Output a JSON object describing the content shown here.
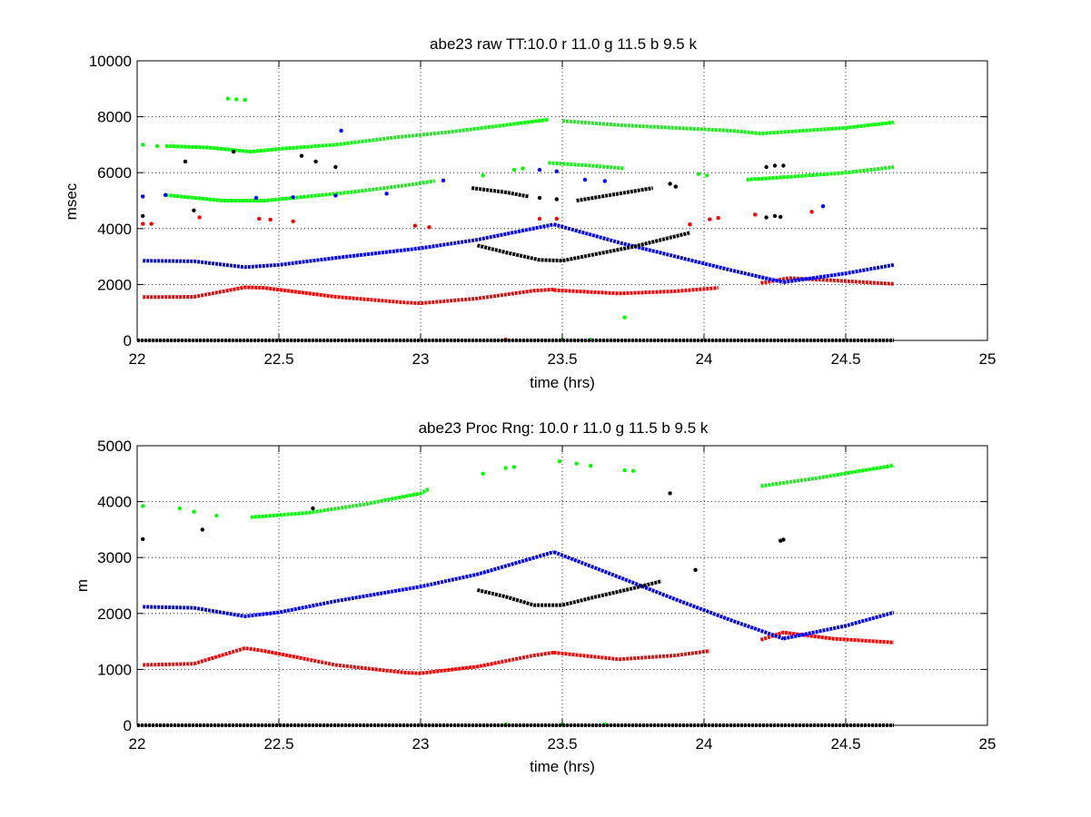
{
  "chart_data": [
    {
      "type": "scatter",
      "title": "abe23 raw TT:10.0 r  11.0 g  11.5 b  9.5 k",
      "xlabel": "time (hrs)",
      "ylabel": "msec",
      "xlim": [
        22,
        25
      ],
      "ylim": [
        0,
        10000
      ],
      "xticks": [
        22,
        22.5,
        23,
        23.5,
        24,
        24.5,
        25
      ],
      "xtick_labels": [
        "22",
        "22.5",
        "23",
        "23.5",
        "24",
        "24.5",
        "25"
      ],
      "yticks": [
        0,
        2000,
        4000,
        6000,
        8000,
        10000
      ],
      "ytick_labels": [
        "0",
        "2000",
        "4000",
        "6000",
        "8000",
        "10000"
      ],
      "grid": true,
      "series": [
        {
          "color": "#ff0000",
          "segments": [
            {
              "x": [
                22.02,
                22.2,
                22.38,
                22.45,
                22.7,
                22.95,
                23.0,
                23.2,
                23.4,
                23.47
              ],
              "y": [
                1550,
                1560,
                1900,
                1880,
                1560,
                1350,
                1330,
                1500,
                1780,
                1820
              ]
            },
            {
              "x": [
                23.47,
                23.7,
                23.9,
                24.05
              ],
              "y": [
                1800,
                1680,
                1760,
                1880
              ]
            },
            {
              "x": [
                24.2,
                24.3,
                24.45,
                24.67
              ],
              "y": [
                2050,
                2230,
                2150,
                2020
              ]
            }
          ],
          "scatter": [
            {
              "x": 22.02,
              "y": 4170
            },
            {
              "x": 22.05,
              "y": 4170
            },
            {
              "x": 22.22,
              "y": 4400
            },
            {
              "x": 22.43,
              "y": 4350
            },
            {
              "x": 22.47,
              "y": 4320
            },
            {
              "x": 22.55,
              "y": 4260
            },
            {
              "x": 22.98,
              "y": 4100
            },
            {
              "x": 23.03,
              "y": 4050
            },
            {
              "x": 23.42,
              "y": 4350
            },
            {
              "x": 23.48,
              "y": 4350
            },
            {
              "x": 23.95,
              "y": 4150
            },
            {
              "x": 24.02,
              "y": 4330
            },
            {
              "x": 24.05,
              "y": 4380
            },
            {
              "x": 24.18,
              "y": 4500
            },
            {
              "x": 24.38,
              "y": 4600
            },
            {
              "x": 23.3,
              "y": 30
            }
          ]
        },
        {
          "color": "#00ff00",
          "segments": [
            {
              "x": [
                22.1,
                22.3,
                22.45,
                22.6,
                22.75,
                22.95,
                23.05
              ],
              "y": [
                5200,
                5000,
                5000,
                5150,
                5300,
                5550,
                5700
              ]
            },
            {
              "x": [
                24.15,
                24.3,
                24.5,
                24.67
              ],
              "y": [
                5750,
                5850,
                6000,
                6200
              ]
            },
            {
              "x": [
                22.1,
                22.25,
                22.4,
                22.5,
                22.7,
                22.9,
                23.1,
                23.3,
                23.45
              ],
              "y": [
                6950,
                6900,
                6750,
                6850,
                7000,
                7250,
                7450,
                7700,
                7900
              ]
            },
            {
              "x": [
                23.5,
                23.7,
                23.9,
                24.1,
                24.2,
                24.5,
                24.67
              ],
              "y": [
                7850,
                7700,
                7600,
                7500,
                7400,
                7600,
                7800
              ]
            },
            {
              "x": [
                23.45,
                23.6,
                23.72
              ],
              "y": [
                6350,
                6250,
                6150
              ]
            }
          ],
          "scatter": [
            {
              "x": 22.02,
              "y": 7000
            },
            {
              "x": 22.07,
              "y": 6950
            },
            {
              "x": 22.32,
              "y": 8650
            },
            {
              "x": 22.35,
              "y": 8620
            },
            {
              "x": 22.38,
              "y": 8600
            },
            {
              "x": 23.22,
              "y": 5900
            },
            {
              "x": 23.33,
              "y": 6100
            },
            {
              "x": 23.36,
              "y": 6150
            },
            {
              "x": 23.98,
              "y": 5950
            },
            {
              "x": 24.01,
              "y": 5900
            },
            {
              "x": 23.72,
              "y": 820
            },
            {
              "x": 23.5,
              "y": 30
            },
            {
              "x": 23.6,
              "y": 30
            }
          ]
        },
        {
          "color": "#0000ff",
          "segments": [
            {
              "x": [
                22.02,
                22.2,
                22.38,
                22.5,
                22.7,
                23.0,
                23.2,
                23.47
              ],
              "y": [
                2850,
                2830,
                2620,
                2700,
                2950,
                3300,
                3600,
                4150
              ]
            },
            {
              "x": [
                23.47,
                23.7,
                23.9,
                24.1,
                24.28
              ],
              "y": [
                4150,
                3500,
                3000,
                2500,
                2080
              ]
            },
            {
              "x": [
                24.28,
                24.5,
                24.67
              ],
              "y": [
                2080,
                2400,
                2700
              ]
            }
          ],
          "scatter": [
            {
              "x": 22.02,
              "y": 5150
            },
            {
              "x": 22.1,
              "y": 5200
            },
            {
              "x": 22.42,
              "y": 5100
            },
            {
              "x": 22.55,
              "y": 5120
            },
            {
              "x": 22.7,
              "y": 5180
            },
            {
              "x": 22.72,
              "y": 7500
            },
            {
              "x": 22.88,
              "y": 5250
            },
            {
              "x": 23.08,
              "y": 5720
            },
            {
              "x": 23.42,
              "y": 6100
            },
            {
              "x": 23.48,
              "y": 6050
            },
            {
              "x": 23.58,
              "y": 5750
            },
            {
              "x": 23.65,
              "y": 5700
            },
            {
              "x": 24.42,
              "y": 4800
            }
          ]
        },
        {
          "color": "#000000",
          "segments": [
            {
              "x": [
                22.0,
                24.67
              ],
              "y": [
                0,
                0
              ]
            },
            {
              "x": [
                23.2,
                23.3,
                23.42,
                23.5,
                23.6,
                23.75,
                23.95
              ],
              "y": [
                3400,
                3150,
                2880,
                2850,
                3050,
                3350,
                3850
              ]
            },
            {
              "x": [
                23.18,
                23.3,
                23.38
              ],
              "y": [
                5450,
                5300,
                5150
              ]
            },
            {
              "x": [
                23.55,
                23.7,
                23.82
              ],
              "y": [
                5000,
                5250,
                5450
              ]
            }
          ],
          "scatter": [
            {
              "x": 22.02,
              "y": 4450
            },
            {
              "x": 22.17,
              "y": 6400
            },
            {
              "x": 22.2,
              "y": 4650
            },
            {
              "x": 22.34,
              "y": 6750
            },
            {
              "x": 22.58,
              "y": 6600
            },
            {
              "x": 22.63,
              "y": 6400
            },
            {
              "x": 22.7,
              "y": 6200
            },
            {
              "x": 23.42,
              "y": 5100
            },
            {
              "x": 23.48,
              "y": 5050
            },
            {
              "x": 23.88,
              "y": 5600
            },
            {
              "x": 23.9,
              "y": 5500
            },
            {
              "x": 24.22,
              "y": 6200
            },
            {
              "x": 24.25,
              "y": 6250
            },
            {
              "x": 24.28,
              "y": 6250
            },
            {
              "x": 24.22,
              "y": 4400
            },
            {
              "x": 24.25,
              "y": 4450
            },
            {
              "x": 24.27,
              "y": 4420
            }
          ]
        }
      ]
    },
    {
      "type": "scatter",
      "title": "abe23 Proc Rng: 10.0 r  11.0 g  11.5 b  9.5  k",
      "xlabel": "time (hrs)",
      "ylabel": "m",
      "xlim": [
        22,
        25
      ],
      "ylim": [
        0,
        5000
      ],
      "xticks": [
        22,
        22.5,
        23,
        23.5,
        24,
        24.5,
        25
      ],
      "xtick_labels": [
        "22",
        "22.5",
        "23",
        "23.5",
        "24",
        "24.5",
        "25"
      ],
      "yticks": [
        0,
        1000,
        2000,
        3000,
        4000,
        5000
      ],
      "ytick_labels": [
        "0",
        "1000",
        "2000",
        "3000",
        "4000",
        "5000"
      ],
      "grid": true,
      "series": [
        {
          "color": "#ff0000",
          "segments": [
            {
              "x": [
                22.02,
                22.2,
                22.38,
                22.45,
                22.7,
                22.95,
                23.0,
                23.2,
                23.4,
                23.47
              ],
              "y": [
                1080,
                1100,
                1380,
                1330,
                1080,
                940,
                930,
                1050,
                1250,
                1300
              ]
            },
            {
              "x": [
                23.47,
                23.7,
                23.9,
                24.02
              ],
              "y": [
                1300,
                1180,
                1250,
                1330
              ]
            },
            {
              "x": [
                24.2,
                24.28,
                24.45,
                24.67
              ],
              "y": [
                1530,
                1660,
                1550,
                1480
              ]
            }
          ],
          "scatter": []
        },
        {
          "color": "#00ff00",
          "segments": [
            {
              "x": [
                22.4,
                22.6,
                22.8,
                23.0,
                23.03
              ],
              "y": [
                3720,
                3800,
                3950,
                4150,
                4230
              ]
            },
            {
              "x": [
                24.2,
                24.4,
                24.67
              ],
              "y": [
                4280,
                4420,
                4650
              ]
            }
          ],
          "scatter": [
            {
              "x": 22.02,
              "y": 3920
            },
            {
              "x": 22.15,
              "y": 3880
            },
            {
              "x": 22.2,
              "y": 3820
            },
            {
              "x": 22.28,
              "y": 3750
            },
            {
              "x": 23.22,
              "y": 4500
            },
            {
              "x": 23.3,
              "y": 4600
            },
            {
              "x": 23.33,
              "y": 4620
            },
            {
              "x": 23.49,
              "y": 4720
            },
            {
              "x": 23.55,
              "y": 4680
            },
            {
              "x": 23.6,
              "y": 4640
            },
            {
              "x": 23.72,
              "y": 4560
            },
            {
              "x": 23.75,
              "y": 4550
            },
            {
              "x": 23.3,
              "y": 20
            },
            {
              "x": 23.5,
              "y": 20
            },
            {
              "x": 23.65,
              "y": 20
            }
          ]
        },
        {
          "color": "#0000ff",
          "segments": [
            {
              "x": [
                22.02,
                22.2,
                22.38,
                22.5,
                22.7,
                23.0,
                23.2,
                23.47
              ],
              "y": [
                2120,
                2100,
                1950,
                2020,
                2220,
                2480,
                2700,
                3100
              ]
            },
            {
              "x": [
                23.47,
                23.7,
                23.9,
                24.1,
                24.28
              ],
              "y": [
                3100,
                2650,
                2250,
                1870,
                1550
              ]
            },
            {
              "x": [
                24.28,
                24.5,
                24.67
              ],
              "y": [
                1550,
                1780,
                2020
              ]
            }
          ],
          "scatter": []
        },
        {
          "color": "#000000",
          "segments": [
            {
              "x": [
                22.0,
                24.67
              ],
              "y": [
                0,
                0
              ]
            },
            {
              "x": [
                23.2,
                23.3,
                23.4,
                23.5,
                23.62,
                23.75,
                23.85
              ],
              "y": [
                2420,
                2300,
                2150,
                2150,
                2300,
                2450,
                2580
              ]
            }
          ],
          "scatter": [
            {
              "x": 22.02,
              "y": 3330
            },
            {
              "x": 22.23,
              "y": 3500
            },
            {
              "x": 22.62,
              "y": 3880
            },
            {
              "x": 23.88,
              "y": 4150
            },
            {
              "x": 23.97,
              "y": 2780
            },
            {
              "x": 24.27,
              "y": 3300
            },
            {
              "x": 24.28,
              "y": 3320
            }
          ]
        }
      ]
    }
  ]
}
